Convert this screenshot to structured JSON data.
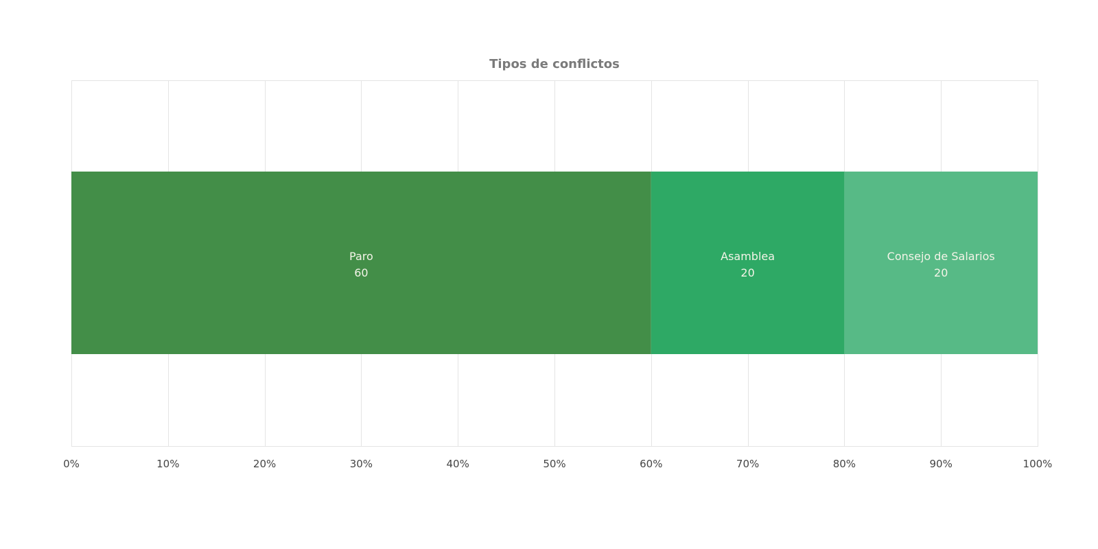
{
  "chart_data": {
    "type": "bar",
    "orientation": "horizontal",
    "stacking": "percent",
    "title": "Tipos de conflictos",
    "xlabel": "",
    "ylabel": "",
    "xlim": [
      0,
      100
    ],
    "x_ticks": [
      "0%",
      "10%",
      "20%",
      "30%",
      "40%",
      "50%",
      "60%",
      "70%",
      "80%",
      "90%",
      "100%"
    ],
    "grid": true,
    "legend": "none",
    "series": [
      {
        "name": "Paro",
        "value": 60,
        "value_label": "60",
        "color": "#438e48"
      },
      {
        "name": "Asamblea",
        "value": 20,
        "value_label": "20",
        "color": "#2ea965"
      },
      {
        "name": "Consejo de Salarios",
        "value": 20,
        "value_label": "20",
        "color": "#57ba86"
      }
    ]
  }
}
